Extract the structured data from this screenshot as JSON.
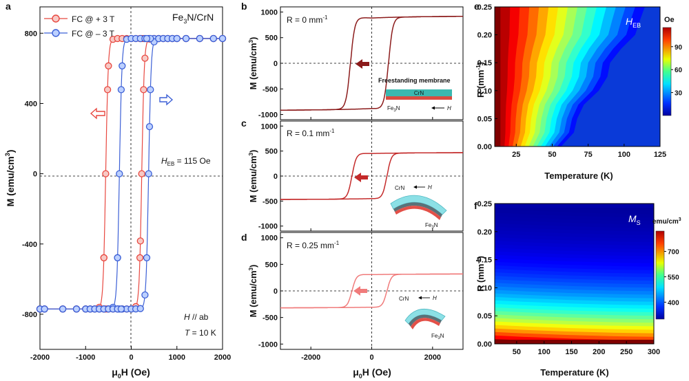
{
  "panel_letters": [
    "a",
    "b",
    "c",
    "d",
    "e",
    "f"
  ],
  "units": {
    "x_unit": "(Oe)",
    "m_unit": "(emu/cm",
    "m_sup": "3",
    "m_close": ")",
    "r_unit": "(mm",
    "r_sup": "-1",
    "r_close": ")"
  },
  "chart_data": [
    {
      "panel": "a",
      "type": "line",
      "title": "Fe3N/CrN",
      "title_main": "Fe",
      "title_sub": "3",
      "title_end": "N/CrN",
      "xlabel": "μ0H (Oe)",
      "xlabel_main": "μ",
      "xlabel_sub": "0",
      "xlabel_end": "H",
      "ylabel": "M (emu/cm3)",
      "xlim": [
        -2000,
        2000
      ],
      "ylim": [
        -1000,
        950
      ],
      "xticks": [
        -2000,
        -1000,
        0,
        1000,
        2000
      ],
      "yticks": [
        -800,
        -400,
        0,
        400,
        800
      ],
      "annotations": {
        "heb_main": "H",
        "heb_sub": "EB",
        "heb_value": " = 115 Oe",
        "field_dir_h": "H",
        "field_dir_rest": " // ab",
        "temp_t": "T",
        "temp_rest": " = 10 K"
      },
      "legend_position": "top-left",
      "series": [
        {
          "name": "FC @ + 3 T",
          "color": "#e8473f",
          "fill": "#f7c9c5",
          "Ms": 770,
          "Hc_left": -560,
          "Hc_right": 230,
          "marker": "circle"
        },
        {
          "name": "FC @ – 3 T",
          "color": "#3b5fd6",
          "fill": "#bcd0ff",
          "Ms": 770,
          "Hc_left": -260,
          "Hc_right": 380,
          "marker": "circle"
        }
      ]
    },
    {
      "panel": "b",
      "type": "line",
      "label_main": "R = 0 mm",
      "label_sup": "-1",
      "ylabel": "M (emu/cm3)",
      "xlim": [
        -3000,
        3000
      ],
      "ylim": [
        -1100,
        1100
      ],
      "yticks": [
        -1000,
        -500,
        0,
        500,
        1000
      ],
      "series": [
        {
          "name": "",
          "color": "#8b1a1a",
          "Ms": 920,
          "Hc_left": -700,
          "Hc_right": 550
        }
      ],
      "inset": {
        "caption": "Freestanding membrane",
        "layer": "CrN",
        "base_main": "Fe",
        "base_sub": "3",
        "base_end": "N",
        "field": "H"
      }
    },
    {
      "panel": "c",
      "type": "line",
      "label_main": "R = 0.1 mm",
      "label_sup": "-1",
      "ylabel": "M (emu/cm3)",
      "xlim": [
        -3000,
        3000
      ],
      "ylim": [
        -1100,
        1100
      ],
      "yticks": [
        -1000,
        -500,
        0,
        500,
        1000
      ],
      "series": [
        {
          "name": "",
          "color": "#c42a2a",
          "Ms": 470,
          "Hc_left": -650,
          "Hc_right": 500
        }
      ],
      "inset": {
        "layer": "CrN",
        "base_main": "Fe",
        "base_sub": "3",
        "base_end": "N",
        "field": "H"
      }
    },
    {
      "panel": "d",
      "type": "line",
      "label_main": "R = 0.25 mm",
      "label_sup": "-1",
      "ylabel": "M (emu/cm3)",
      "xlabel": "μ0H (Oe)",
      "xlim": [
        -3000,
        3000
      ],
      "ylim": [
        -1100,
        1100
      ],
      "xticks": [
        -2000,
        0,
        2000
      ],
      "yticks": [
        -1000,
        -500,
        0,
        500,
        1000
      ],
      "series": [
        {
          "name": "",
          "color": "#f07b7b",
          "Ms": 320,
          "Hc_left": -650,
          "Hc_right": 500
        }
      ],
      "inset": {
        "layer": "CrN",
        "base_main": "Fe",
        "base_sub": "3",
        "base_end": "N",
        "field": "H"
      }
    },
    {
      "panel": "e",
      "type": "heatmap",
      "title_main": "H",
      "title_sub": "EB",
      "xlabel": "Temperature (K)",
      "ylabel": "R (mm-1)",
      "xlim": [
        10,
        125
      ],
      "ylim": [
        0,
        0.25
      ],
      "xticks": [
        25,
        50,
        75,
        100,
        125
      ],
      "yticks": [
        0.0,
        0.05,
        0.1,
        0.15,
        0.2,
        0.25
      ],
      "colorbar_label": "Oe",
      "colorbar_range": [
        0,
        115
      ],
      "colorbar_ticks": [
        30,
        60,
        90
      ]
    },
    {
      "panel": "f",
      "type": "heatmap",
      "title_main": "M",
      "title_sub": "S",
      "xlabel": "Temperature (K)",
      "ylabel": "R (mm-1)",
      "xlim": [
        10,
        300
      ],
      "ylim": [
        0,
        0.25
      ],
      "xticks": [
        50,
        100,
        150,
        200,
        250,
        300
      ],
      "yticks": [
        0.0,
        0.05,
        0.1,
        0.15,
        0.2,
        0.25
      ],
      "colorbar_label_main": "emu/cm",
      "colorbar_label_sup": "3",
      "colorbar_range": [
        300,
        820
      ],
      "colorbar_ticks": [
        400,
        550,
        700
      ]
    }
  ]
}
